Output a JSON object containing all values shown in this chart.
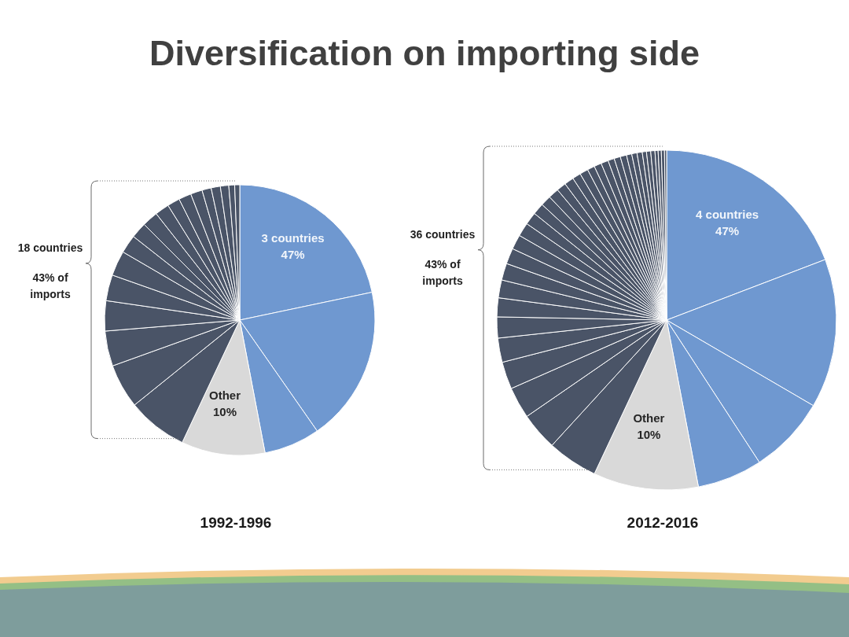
{
  "chart_data": [
    {
      "type": "pie",
      "title": "Diversification on importing side",
      "xlabel": "1992-1996",
      "categories": [
        null,
        null,
        null,
        "Other",
        null,
        null,
        null,
        null,
        null,
        null,
        null,
        null,
        null,
        null,
        null,
        null,
        null,
        null,
        null,
        null,
        null,
        null
      ],
      "values": [
        21.7,
        18.6,
        6.7,
        10,
        7.2,
        5.3,
        4.2,
        3.6,
        3.1,
        3.0,
        2.2,
        1.9,
        1.9,
        1.7,
        1.5,
        1.5,
        1.4,
        1.1,
        1.1,
        1.0,
        0.7,
        0.6
      ],
      "colors": [
        "#6f98d0",
        "#6f98d0",
        "#6f98d0",
        "#d9d9d9",
        "#4a5467",
        "#4a5467",
        "#4a5467",
        "#4a5467",
        "#4a5467",
        "#4a5467",
        "#4a5467",
        "#4a5467",
        "#4a5467",
        "#4a5467",
        "#4a5467",
        "#4a5467",
        "#4a5467",
        "#4a5467",
        "#4a5467",
        "#4a5467",
        "#4a5467",
        "#4a5467"
      ],
      "value_labels": [
        null,
        null,
        null,
        "10%",
        null,
        null,
        null,
        null,
        null,
        null,
        null,
        null,
        null,
        null,
        null,
        null,
        null,
        null,
        null,
        null,
        null,
        null
      ],
      "annotations": [
        "3 countries\n47%",
        "18 countries\n43% of\nimports"
      ]
    },
    {
      "type": "pie",
      "xlabel": "2012-2016",
      "categories": [
        null,
        null,
        null,
        null,
        "Other",
        null,
        null,
        null,
        null,
        null,
        null,
        null,
        null,
        null,
        null,
        null,
        null,
        null,
        null,
        null,
        null,
        null,
        null,
        null,
        null,
        null,
        null,
        null,
        null,
        null,
        null,
        null,
        null,
        null,
        null,
        null,
        null,
        null,
        null,
        null,
        null
      ],
      "values": [
        19.2,
        14.2,
        7.4,
        6.2,
        10,
        4.8,
        3.6,
        3.0,
        2.6,
        2.3,
        2.0,
        1.8,
        1.7,
        1.6,
        1.5,
        1.4,
        1.3,
        1.2,
        1.1,
        1.0,
        1.0,
        0.9,
        0.9,
        0.8,
        0.8,
        0.7,
        0.7,
        0.7,
        0.6,
        0.6,
        0.6,
        0.5,
        0.5,
        0.5,
        0.4,
        0.4,
        0.4,
        0.3,
        0.3,
        0.3,
        0.2
      ],
      "colors": [
        "#6f98d0",
        "#6f98d0",
        "#6f98d0",
        "#6f98d0",
        "#d9d9d9",
        "#4a5467",
        "#4a5467",
        "#4a5467",
        "#4a5467",
        "#4a5467",
        "#4a5467",
        "#4a5467",
        "#4a5467",
        "#4a5467",
        "#4a5467",
        "#4a5467",
        "#4a5467",
        "#4a5467",
        "#4a5467",
        "#4a5467",
        "#4a5467",
        "#4a5467",
        "#4a5467",
        "#4a5467",
        "#4a5467",
        "#4a5467",
        "#4a5467",
        "#4a5467",
        "#4a5467",
        "#4a5467",
        "#4a5467",
        "#4a5467",
        "#4a5467",
        "#4a5467",
        "#4a5467",
        "#4a5467",
        "#4a5467",
        "#4a5467",
        "#4a5467",
        "#4a5467",
        "#4a5467"
      ],
      "value_labels": [
        null,
        null,
        null,
        null,
        "10%",
        null,
        null,
        null,
        null,
        null,
        null,
        null,
        null,
        null,
        null,
        null,
        null,
        null,
        null,
        null,
        null,
        null,
        null,
        null,
        null,
        null,
        null,
        null,
        null,
        null,
        null,
        null,
        null,
        null,
        null,
        null,
        null,
        null,
        null,
        null,
        null
      ],
      "annotations": [
        "4 countries\n47%",
        "36 countries\n43% of\nimports"
      ]
    }
  ]
}
